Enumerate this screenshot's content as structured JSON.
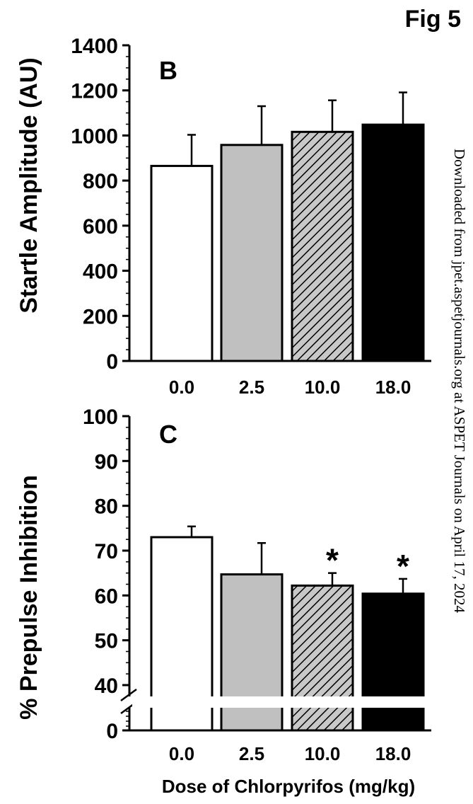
{
  "figure_label": "Fig 5",
  "watermark": "Downloaded from jpet.aspetjournals.org at ASPET Journals on April 17, 2024",
  "shared_xlabel": "Dose of Chlorpyrifos (mg/kg)",
  "colors": {
    "control": "#ffffff",
    "low": "#c0c0c0",
    "mid": "#c8c8c8",
    "high": "#000000",
    "axis": "#000000"
  },
  "chart_data": [
    {
      "type": "bar",
      "panel_label": "B",
      "ylabel": "Startle Amplitude (AU)",
      "categories": [
        "0.0",
        "2.5",
        "10.0",
        "18.0"
      ],
      "values": [
        865,
        958,
        1016,
        1048
      ],
      "errors": [
        138,
        172,
        140,
        143
      ],
      "fills": [
        "white",
        "gray",
        "hatched",
        "black"
      ],
      "ylim": [
        0,
        1400
      ],
      "yticks": [
        "0",
        "200",
        "400",
        "600",
        "800",
        "1000",
        "1200",
        "1400"
      ],
      "ytick_values": [
        0,
        200,
        400,
        600,
        800,
        1000,
        1200,
        1400
      ],
      "minor_ytick_step": 50
    },
    {
      "type": "bar",
      "panel_label": "C",
      "ylabel": "% Prepulse Inhibition",
      "categories": [
        "0.0",
        "2.5",
        "10.0",
        "18.0"
      ],
      "values": [
        73,
        64.7,
        62.2,
        60.4
      ],
      "errors": [
        2.4,
        7.0,
        2.8,
        3.3
      ],
      "fills": [
        "white",
        "gray",
        "hatched",
        "black"
      ],
      "significance": [
        "",
        "",
        "*",
        "*"
      ],
      "axis_break": true,
      "ylim": [
        40,
        100
      ],
      "yticks": [
        "0",
        "40",
        "50",
        "60",
        "70",
        "80",
        "90",
        "100"
      ],
      "ytick_values": [
        0,
        40,
        50,
        60,
        70,
        80,
        90,
        100
      ],
      "minor_ytick_step": 2.5
    }
  ]
}
